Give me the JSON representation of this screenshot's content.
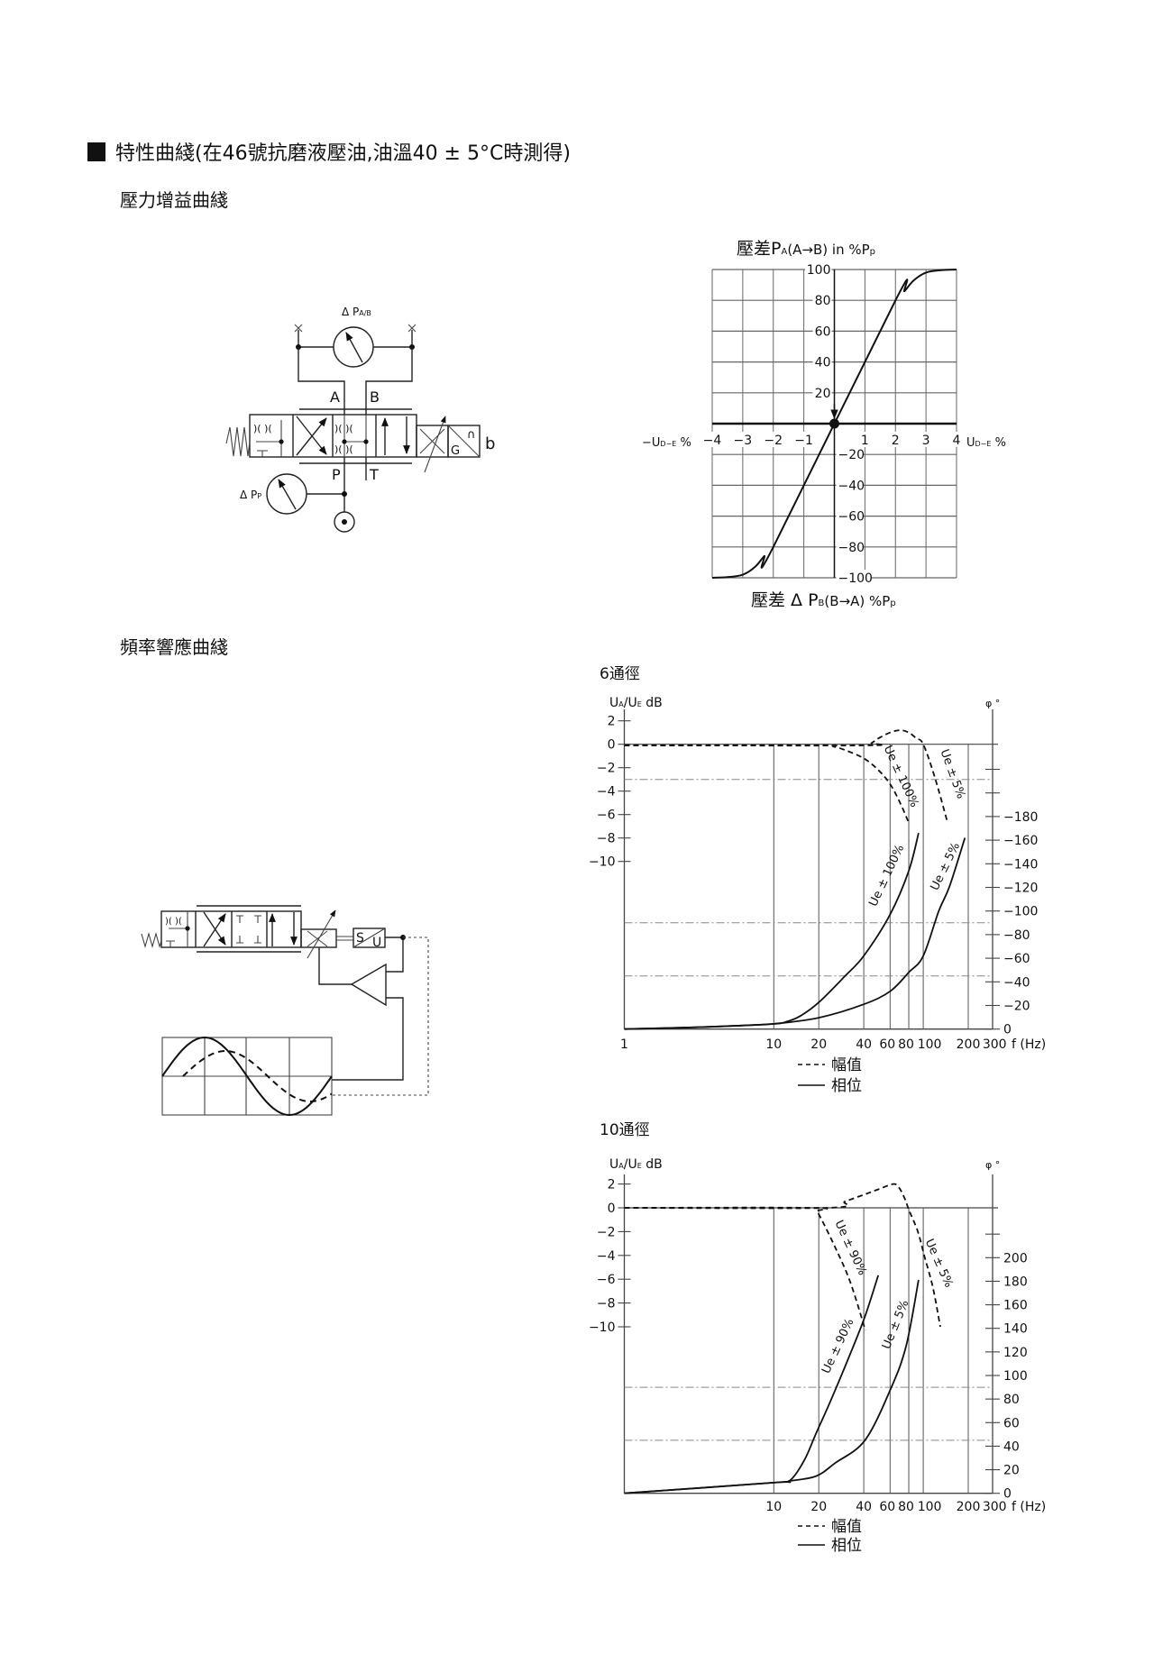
{
  "header": {
    "section_title": "特性曲綫(在46號抗磨液壓油,油溫40 ± 5°C時測得)",
    "gain_subtitle": "壓力增益曲綫",
    "freq_subtitle": "頻率響應曲綫"
  },
  "gain_schematic": {
    "gauge_ab_label": "Δ P",
    "gauge_ab_sub": "A/B",
    "port_a": "A",
    "port_b": "B",
    "port_p": "P",
    "port_t": "T",
    "solenoid_label": "b",
    "sensor_g": "G",
    "sensor_mark": "∩",
    "gauge_p_label": "Δ P",
    "gauge_p_sub": "P"
  },
  "freq_schematic": {
    "transducer_s": "S",
    "transducer_u": "U"
  },
  "chart_data": [
    {
      "type": "line",
      "title": {
        "pre": "壓差P",
        "sub1": "A",
        "mid": "(A→B) in %P",
        "sub2": "p"
      },
      "bottom_label": {
        "pre": "壓差 Δ P",
        "sub1": "B",
        "mid": "(B→A) %P",
        "sub2": "p"
      },
      "x_label_left": {
        "pre": "−U",
        "sub": "D−E",
        "post": " %"
      },
      "x_label_right": {
        "pre": "U",
        "sub": "D−E",
        "post": " %"
      },
      "xlim": [
        -4,
        4
      ],
      "ylim": [
        -100,
        100
      ],
      "grid": true,
      "x_ticks": [
        -4,
        -3,
        -2,
        -1,
        1,
        2,
        3,
        4
      ],
      "x_tick_labels": [
        "−4",
        "−3",
        "−2",
        "−1",
        "1",
        "2",
        "3",
        "4"
      ],
      "y_ticks": [
        100,
        80,
        60,
        40,
        20,
        -20,
        -40,
        -60,
        -80,
        -100
      ],
      "y_tick_labels": [
        "100",
        "80",
        "60",
        "40",
        "20",
        "−20",
        "−40",
        "−60",
        "−80",
        "−100"
      ],
      "series": [
        {
          "x": [
            -4,
            -3.5,
            -3,
            -2.6,
            -2.3,
            -2,
            2,
            2.3,
            2.6,
            3,
            3.5,
            4
          ],
          "y": [
            -100,
            -99.6,
            -98,
            -93,
            -86,
            -80,
            80,
            86,
            93,
            98,
            99.6,
            100
          ]
        }
      ]
    },
    {
      "type": "line",
      "title": "6通徑",
      "x_scale": "log",
      "xlim": [
        1,
        300
      ],
      "x_ticks": [
        1,
        10,
        20,
        40,
        60,
        80,
        100,
        200,
        300
      ],
      "x_tick_labels": [
        "1",
        "10",
        "20",
        "40",
        "60",
        "80",
        "100",
        "200",
        "300"
      ],
      "x_label": "f (Hz)",
      "grid_x": [
        10,
        20,
        40,
        60,
        80,
        100,
        200
      ],
      "y_left": {
        "label": {
          "u1": "U",
          "s1": "A",
          "u2": "/U",
          "s2": "E",
          "unit": " dB"
        },
        "lim": [
          -10,
          2
        ],
        "ticks": [
          2,
          0,
          -2,
          -4,
          -6,
          -8,
          -10
        ],
        "tick_labels": [
          "2",
          "0",
          "−2",
          "−4",
          "−6",
          "−8",
          "−10"
        ]
      },
      "y_right": {
        "label": "φ °",
        "lim": [
          0,
          -180
        ],
        "ticks": [
          0,
          -20,
          -40,
          -60,
          -80,
          -100,
          -120,
          -140,
          -160,
          -180
        ],
        "tick_labels": [
          "0",
          "−20",
          "−40",
          "−60",
          "−80",
          "−100",
          "−120",
          "−140",
          "−160",
          "−180"
        ]
      },
      "reference_lines": [
        {
          "axis": "left",
          "value": -3
        },
        {
          "axis": "right",
          "value": -90
        },
        {
          "axis": "right",
          "value": -45
        }
      ],
      "legend": [
        {
          "style": "dashed",
          "label": "幅值"
        },
        {
          "style": "solid",
          "label": "相位"
        }
      ],
      "series": [
        {
          "name": "Ue ± 100%",
          "kind": "amplitude",
          "axis": "left",
          "style": "dashed",
          "x": [
            1,
            20,
            25,
            30,
            40,
            50,
            60,
            70,
            80
          ],
          "y": [
            -0.1,
            -0.1,
            -0.2,
            -0.5,
            -1.2,
            -2.2,
            -3.4,
            -5,
            -6.7
          ]
        },
        {
          "name": "Ue ± 5%",
          "kind": "amplitude",
          "axis": "left",
          "style": "dashed",
          "x": [
            1,
            40,
            45,
            50,
            60,
            70,
            80,
            90,
            100,
            120,
            144
          ],
          "y": [
            -0.1,
            -0.1,
            0.1,
            0.5,
            1.0,
            1.2,
            1.0,
            0.5,
            0,
            -2.9,
            -6.5
          ]
        },
        {
          "name": "Ue ± 100%",
          "kind": "phase",
          "axis": "right",
          "style": "solid",
          "x": [
            1,
            3,
            6,
            10,
            12,
            15,
            20,
            30,
            40,
            60,
            80,
            93
          ],
          "y": [
            0,
            -1.5,
            -3,
            -4.4,
            -6,
            -11,
            -22.6,
            -45,
            -62,
            -97,
            -134,
            -166
          ]
        },
        {
          "name": "Ue ± 5%",
          "kind": "phase",
          "axis": "right",
          "style": "solid",
          "x": [
            1,
            3,
            6,
            10,
            20,
            40,
            60,
            80,
            100,
            127,
            150,
            190
          ],
          "y": [
            0,
            -1.5,
            -3,
            -4.4,
            -9.6,
            -21,
            -32,
            -48,
            -62,
            -100,
            -121,
            -162
          ]
        }
      ]
    },
    {
      "type": "line",
      "title": "10通徑",
      "x_scale": "log",
      "xlim": [
        1,
        300
      ],
      "x_ticks": [
        10,
        20,
        40,
        60,
        80,
        100,
        200,
        300
      ],
      "x_tick_labels": [
        "10",
        "20",
        "40",
        "60",
        "80",
        "100",
        "200",
        "300"
      ],
      "x_label": "f (Hz)",
      "grid_x": [
        10,
        20,
        40,
        60,
        80,
        100,
        200
      ],
      "y_left": {
        "label": {
          "u1": "U",
          "s1": "A",
          "u2": "/U",
          "s2": "E",
          "unit": " dB"
        },
        "lim": [
          -10,
          2
        ],
        "ticks": [
          2,
          0,
          -2,
          -4,
          -6,
          -8,
          -10
        ],
        "tick_labels": [
          "2",
          "0",
          "−2",
          "−4",
          "−6",
          "−8",
          "−10"
        ]
      },
      "y_right": {
        "label": "φ °",
        "lim": [
          0,
          200
        ],
        "ticks": [
          0,
          20,
          40,
          60,
          80,
          100,
          120,
          140,
          160,
          180,
          200
        ],
        "tick_labels": [
          "0",
          "20",
          "40",
          "60",
          "80",
          "100",
          "120",
          "140",
          "160",
          "180",
          "200"
        ]
      },
      "reference_lines": [
        {
          "axis": "right",
          "value": 90
        },
        {
          "axis": "right",
          "value": 45
        }
      ],
      "legend": [
        {
          "style": "dashed",
          "label": "幅值"
        },
        {
          "style": "solid",
          "label": "相位"
        }
      ],
      "series": [
        {
          "name": "Ue ± 90%",
          "kind": "amplitude",
          "axis": "left",
          "style": "dashed",
          "x": [
            1,
            18,
            19.4,
            20.9,
            25.7,
            32.4,
            41
          ],
          "y": [
            0,
            0,
            -0.3,
            -1,
            -3.3,
            -6.2,
            -10.3
          ]
        },
        {
          "name": "Ue ± 5%",
          "kind": "amplitude",
          "axis": "left",
          "style": "dashed",
          "x": [
            1,
            22.8,
            30,
            40,
            50,
            63,
            68.8,
            75,
            80.6,
            92,
            102,
            116,
            130
          ],
          "y": [
            0,
            0,
            0.54,
            1.1,
            1.55,
            2,
            1.7,
            0.8,
            -0.25,
            -2,
            -4.1,
            -6.7,
            -10
          ]
        },
        {
          "name": "Ue ± 90%",
          "kind": "phase",
          "axis": "right",
          "style": "solid",
          "x": [
            1,
            10,
            12.8,
            16,
            19.2,
            24.2,
            32.4,
            40.7,
            50
          ],
          "y": [
            0,
            9,
            10.8,
            28,
            51,
            79.5,
            118,
            150,
            185
          ]
        },
        {
          "name": "Ue ± 5%",
          "kind": "phase",
          "axis": "right",
          "style": "solid",
          "x": [
            1,
            10,
            12.8,
            19.2,
            25.7,
            40.7,
            60.5,
            77,
            93
          ],
          "y": [
            0,
            9,
            10.5,
            14.6,
            25.6,
            45,
            88.5,
            125.6,
            181
          ]
        }
      ]
    }
  ]
}
